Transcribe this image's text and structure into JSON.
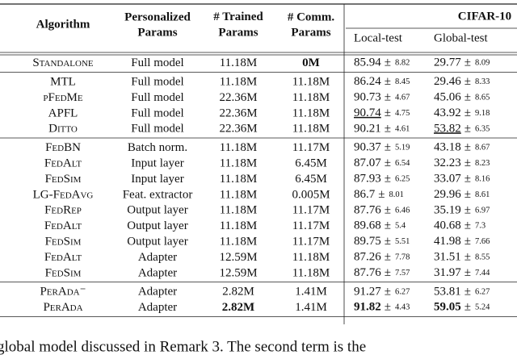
{
  "table": {
    "header": {
      "algorithm": "Algorithm",
      "personalized": [
        "Personalized",
        "Params"
      ],
      "trained": [
        "# Trained",
        "Params"
      ],
      "comm": [
        "# Comm.",
        "Params"
      ],
      "dataset": "CIFAR-10",
      "local": "Local-test",
      "global": "Global-test"
    },
    "pm": "±",
    "groups": [
      [
        {
          "name": "Standalone",
          "params": "Full model",
          "trained": "11.18M",
          "comm": "0M",
          "comm_bold": true,
          "local": {
            "mean": "85.94",
            "std": "8.82"
          },
          "global": {
            "mean": "29.77",
            "std": "8.09"
          }
        }
      ],
      [
        {
          "name": "MTL",
          "params": "Full model",
          "trained": "11.18M",
          "comm": "11.18M",
          "local": {
            "mean": "86.24",
            "std": "8.45"
          },
          "global": {
            "mean": "29.46",
            "std": "8.33"
          }
        },
        {
          "name": "pFedMe",
          "params": "Full model",
          "trained": "22.36M",
          "comm": "11.18M",
          "local": {
            "mean": "90.73",
            "std": "4.67"
          },
          "global": {
            "mean": "45.06",
            "std": "8.65"
          }
        },
        {
          "name": "APFL",
          "params": "Full model",
          "trained": "22.36M",
          "comm": "11.18M",
          "local": {
            "mean": "90.74",
            "std": "4.75",
            "underline": true
          },
          "global": {
            "mean": "43.92",
            "std": "9.18"
          }
        },
        {
          "name": "Ditto",
          "params": "Full model",
          "trained": "22.36M",
          "comm": "11.18M",
          "local": {
            "mean": "90.21",
            "std": "4.61"
          },
          "global": {
            "mean": "53.82",
            "std": "6.35",
            "underline": true
          }
        }
      ],
      [
        {
          "name": "FedBN",
          "params": "Batch norm.",
          "trained": "11.18M",
          "comm": "11.17M",
          "local": {
            "mean": "90.37",
            "std": "5.19"
          },
          "global": {
            "mean": "43.18",
            "std": "8.67"
          }
        },
        {
          "name": "FedAlt",
          "params": "Input layer",
          "trained": "11.18M",
          "comm": "6.45M",
          "local": {
            "mean": "87.07",
            "std": "6.54"
          },
          "global": {
            "mean": "32.23",
            "std": "8.23"
          }
        },
        {
          "name": "FedSim",
          "params": "Input layer",
          "trained": "11.18M",
          "comm": "6.45M",
          "local": {
            "mean": "87.93",
            "std": "6.25"
          },
          "global": {
            "mean": "33.07",
            "std": "8.16"
          }
        },
        {
          "name": "LG-FedAvg",
          "params": "Feat. extractor",
          "trained": "11.18M",
          "comm": "0.005M",
          "local": {
            "mean": "86.7",
            "std": "8.01"
          },
          "global": {
            "mean": "29.96",
            "std": "8.61"
          }
        },
        {
          "name": "FedRep",
          "params": "Output layer",
          "trained": "11.18M",
          "comm": "11.17M",
          "local": {
            "mean": "87.76",
            "std": "6.46"
          },
          "global": {
            "mean": "35.19",
            "std": "6.97"
          }
        },
        {
          "name": "FedAlt",
          "params": "Output layer",
          "trained": "11.18M",
          "comm": "11.17M",
          "local": {
            "mean": "89.68",
            "std": "5.4"
          },
          "global": {
            "mean": "40.68",
            "std": "7.3"
          }
        },
        {
          "name": "FedSim",
          "params": "Output layer",
          "trained": "11.18M",
          "comm": "11.17M",
          "local": {
            "mean": "89.75",
            "std": "5.51"
          },
          "global": {
            "mean": "41.98",
            "std": "7.66"
          }
        },
        {
          "name": "FedAlt",
          "params": "Adapter",
          "trained": "12.59M",
          "comm": "11.18M",
          "local": {
            "mean": "87.26",
            "std": "7.78"
          },
          "global": {
            "mean": "31.51",
            "std": "8.55"
          }
        },
        {
          "name": "FedSim",
          "params": "Adapter",
          "trained": "12.59M",
          "comm": "11.18M",
          "local": {
            "mean": "87.76",
            "std": "7.57"
          },
          "global": {
            "mean": "31.97",
            "std": "7.44"
          }
        }
      ],
      [
        {
          "name": "PerAda⁻",
          "params": "Adapter",
          "trained": "2.82M",
          "comm": "1.41M",
          "local": {
            "mean": "91.27",
            "std": "6.27"
          },
          "global": {
            "mean": "53.81",
            "std": "6.27"
          }
        },
        {
          "name": "PerAda",
          "params": "Adapter",
          "trained": "2.82M",
          "trained_bold": true,
          "comm": "1.41M",
          "local": {
            "mean": "91.82",
            "std": "4.43",
            "bold": true
          },
          "global": {
            "mean": "59.05",
            "std": "5.24",
            "bold": true
          }
        }
      ]
    ]
  },
  "body_text": "global model discussed in Remark 3. The second term is the"
}
